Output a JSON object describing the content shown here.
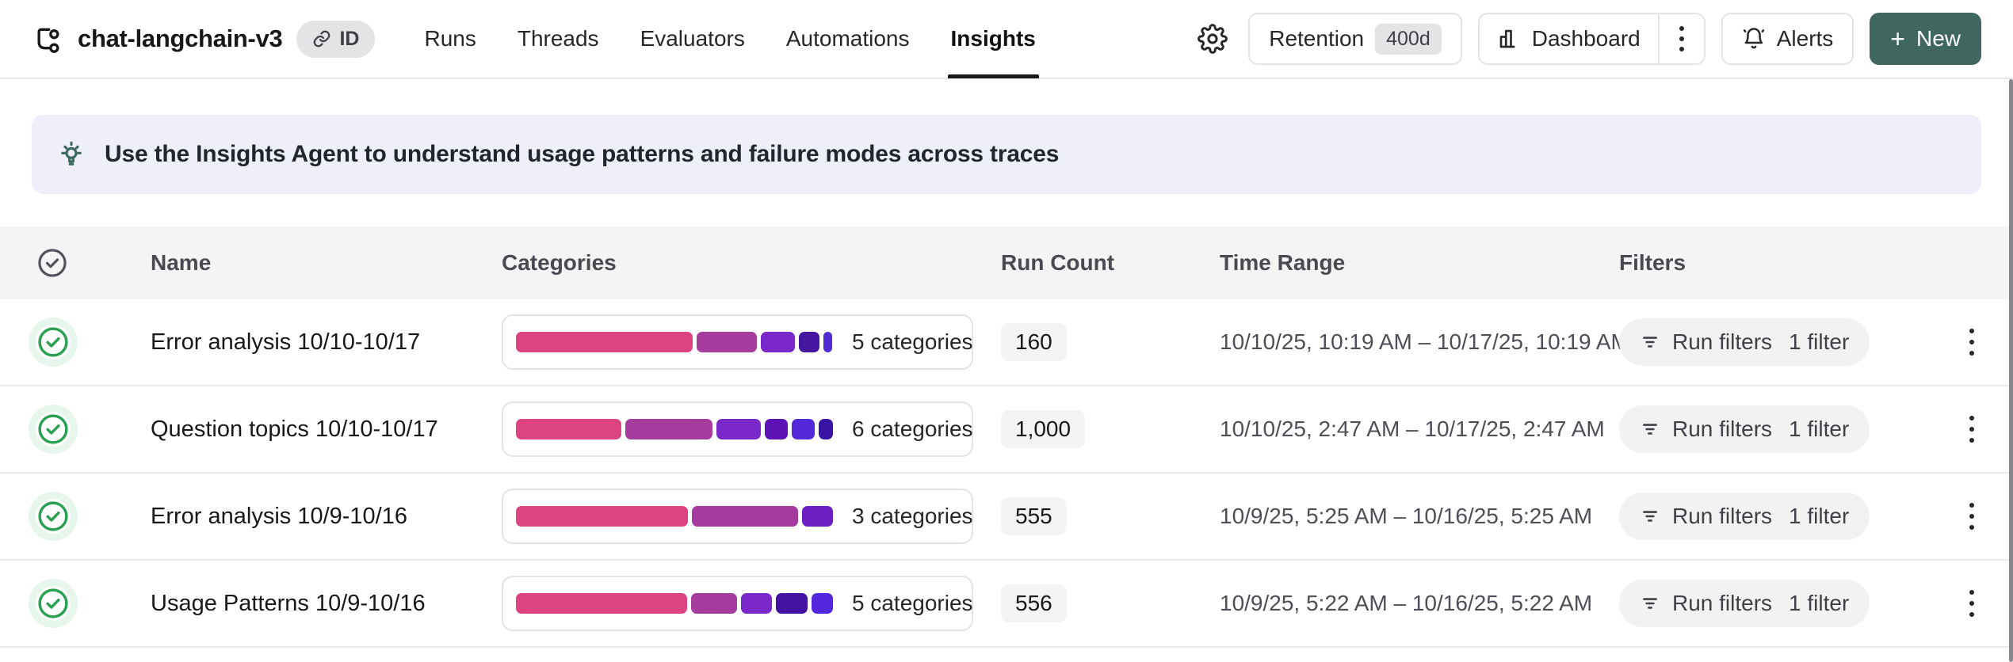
{
  "header": {
    "project_title": "chat-langchain-v3",
    "id_badge_label": "ID",
    "nav": [
      {
        "label": "Runs",
        "active": false
      },
      {
        "label": "Threads",
        "active": false
      },
      {
        "label": "Evaluators",
        "active": false
      },
      {
        "label": "Automations",
        "active": false
      },
      {
        "label": "Insights",
        "active": true
      }
    ],
    "actions": {
      "retention_label": "Retention",
      "retention_value": "400d",
      "dashboard_label": "Dashboard",
      "alerts_label": "Alerts",
      "new_plus": "+",
      "new_label": "New"
    }
  },
  "banner": {
    "text": "Use the Insights Agent to understand usage patterns and failure modes across traces"
  },
  "table": {
    "columns": [
      "Name",
      "Categories",
      "Run Count",
      "Time Range",
      "Filters"
    ],
    "rows": [
      {
        "name": "Error analysis 10/10-10/17",
        "categories_label": "5 categories",
        "segments": [
          {
            "color": "#dc4380",
            "pct": 55.5
          },
          {
            "color": "#a73c9f",
            "pct": 19.0
          },
          {
            "color": "#7a28c9",
            "pct": 10.5
          },
          {
            "color": "#45169f",
            "pct": 6.6
          },
          {
            "color": "#4f2bd4",
            "pct": 2.6
          }
        ],
        "run_count": "160",
        "time_range": "10/10/25, 10:19 AM – 10/17/25, 10:19 AM",
        "filter_label": "Run filters",
        "filter_count": "1 filter"
      },
      {
        "name": "Question topics 10/10-10/17",
        "categories_label": "6 categories",
        "segments": [
          {
            "color": "#dc4380",
            "pct": 33.0
          },
          {
            "color": "#a73c9f",
            "pct": 27.5
          },
          {
            "color": "#7a28c9",
            "pct": 14.0
          },
          {
            "color": "#5d13b5",
            "pct": 7.2
          },
          {
            "color": "#5429dc",
            "pct": 7.0
          },
          {
            "color": "#3a14a5",
            "pct": 4.6
          }
        ],
        "run_count": "1,000",
        "time_range": "10/10/25, 2:47 AM – 10/17/25, 2:47 AM",
        "filter_label": "Run filters",
        "filter_count": "1 filter"
      },
      {
        "name": "Error analysis 10/9-10/16",
        "categories_label": "3 categories",
        "segments": [
          {
            "color": "#dc4380",
            "pct": 54.0
          },
          {
            "color": "#a73c9f",
            "pct": 33.2
          },
          {
            "color": "#6d1fc4",
            "pct": 9.8
          }
        ],
        "run_count": "555",
        "time_range": "10/9/25, 5:25 AM – 10/16/25, 5:25 AM",
        "filter_label": "Run filters",
        "filter_count": "1 filter"
      },
      {
        "name": "Usage Patterns 10/9-10/16",
        "categories_label": "5 categories",
        "segments": [
          {
            "color": "#dc4380",
            "pct": 53.8
          },
          {
            "color": "#a73c9f",
            "pct": 14.4
          },
          {
            "color": "#7a28c9",
            "pct": 9.6
          },
          {
            "color": "#4312a0",
            "pct": 10.0
          },
          {
            "color": "#5328dc",
            "pct": 6.8
          }
        ],
        "run_count": "556",
        "time_range": "10/9/25, 5:22 AM – 10/16/25, 5:22 AM",
        "filter_label": "Run filters",
        "filter_count": "1 filter"
      }
    ]
  },
  "colors": {
    "accent_new_button": "#3f665f",
    "banner_bg": "#eeeffb",
    "success_green": "#2aa052",
    "table_header_bg": "#f4f4f5"
  }
}
